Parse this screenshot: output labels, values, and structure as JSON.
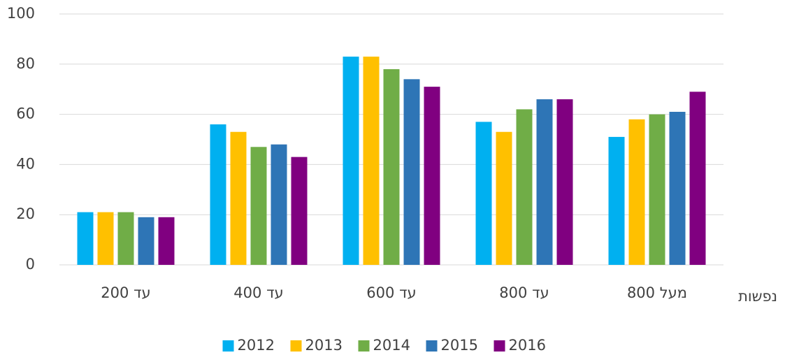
{
  "chart_data": {
    "type": "bar",
    "x_label": "נפשות",
    "categories": [
      "עד 200",
      "עד 400",
      "עד 600",
      "עד 800",
      "מעל 800"
    ],
    "series": [
      {
        "name": "2012",
        "color": "#00b0f0",
        "values": [
          21,
          56,
          83,
          57,
          51
        ]
      },
      {
        "name": "2013",
        "color": "#ffc000",
        "values": [
          21,
          53,
          83,
          53,
          58
        ]
      },
      {
        "name": "2014",
        "color": "#70ad47",
        "values": [
          21,
          47,
          78,
          62,
          60
        ]
      },
      {
        "name": "2015",
        "color": "#2e75b6",
        "values": [
          19,
          48,
          74,
          66,
          61
        ]
      },
      {
        "name": "2016",
        "color": "#800080",
        "values": [
          19,
          43,
          71,
          66,
          69
        ]
      }
    ],
    "ylim": [
      0,
      100
    ],
    "yticks": [
      0,
      20,
      40,
      60,
      80,
      100
    ],
    "grid": true,
    "legend": "bottom"
  }
}
